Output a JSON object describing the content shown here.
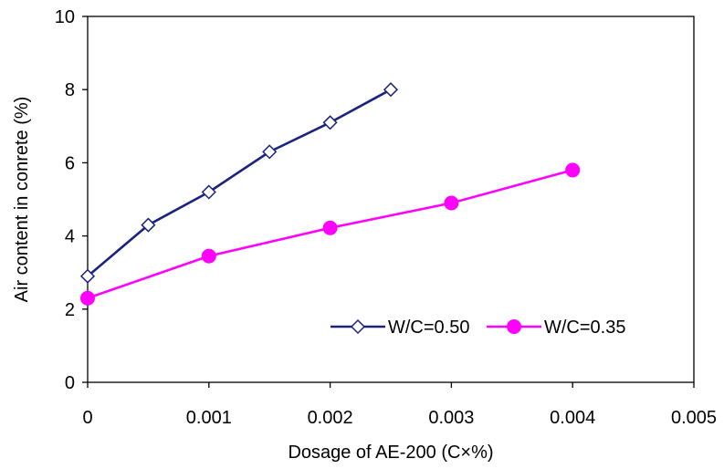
{
  "chart_data": {
    "type": "line",
    "title": "",
    "xlabel": "Dosage of AE-200 (C×%)",
    "ylabel": "Air content in conrete (%)",
    "xlim": [
      0,
      0.005
    ],
    "ylim": [
      0,
      10
    ],
    "x_ticks": [
      "0",
      "0.001",
      "0.002",
      "0.003",
      "0.004",
      "0.005"
    ],
    "x_tick_values": [
      0,
      0.001,
      0.002,
      0.003,
      0.004,
      0.005
    ],
    "y_ticks": [
      "0",
      "2",
      "4",
      "6",
      "8",
      "10"
    ],
    "y_tick_values": [
      0,
      2,
      4,
      6,
      8,
      10
    ],
    "grid": false,
    "legend_position": "bottom-right",
    "series": [
      {
        "name": "W/C=0.50",
        "color": "#1a237e",
        "marker": "diamond-open",
        "x": [
          0,
          0.0005,
          0.001,
          0.0015,
          0.002,
          0.0025
        ],
        "y": [
          2.9,
          4.3,
          5.2,
          6.3,
          7.1,
          8.0
        ]
      },
      {
        "name": "W/C=0.35",
        "color": "#ff00ff",
        "marker": "circle-filled",
        "x": [
          0,
          0.001,
          0.002,
          0.003,
          0.004
        ],
        "y": [
          2.3,
          3.45,
          4.22,
          4.9,
          5.8
        ]
      }
    ]
  }
}
